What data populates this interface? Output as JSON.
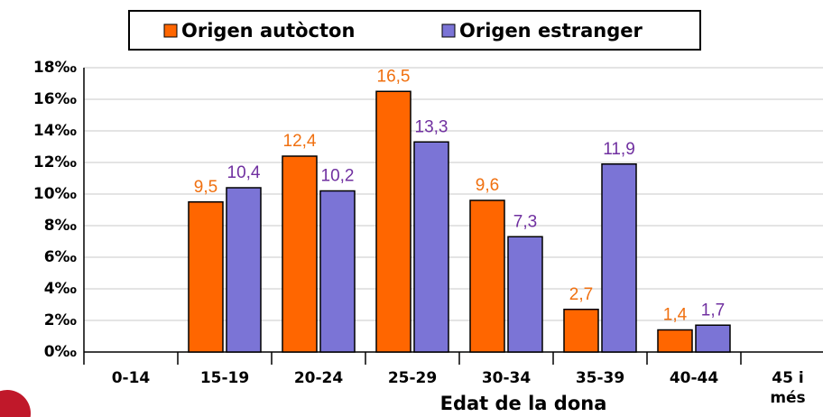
{
  "chart_data": {
    "type": "bar",
    "x_label": "Edat de la dona",
    "categories": [
      "0-14",
      "15-19",
      "20-24",
      "25-29",
      "30-34",
      "35-39",
      "40-44",
      "45 i més"
    ],
    "series": [
      {
        "name": "Origen autòcton",
        "color": "#ff6600",
        "label_color": "#f07010",
        "values": [
          null,
          9.5,
          12.4,
          16.5,
          9.6,
          2.7,
          1.4,
          null
        ],
        "value_labels": [
          null,
          "9,5",
          "12,4",
          "16,5",
          "9,6",
          "2,7",
          "1,4",
          null
        ]
      },
      {
        "name": "Origen estranger",
        "color": "#7b74d6",
        "label_color": "#7030a0",
        "values": [
          null,
          10.4,
          10.2,
          13.3,
          7.3,
          11.9,
          1.7,
          null
        ],
        "value_labels": [
          null,
          "10,4",
          "10,2",
          "13,3",
          "7,3",
          "11,9",
          "1,7",
          null
        ]
      }
    ],
    "ylim": [
      0,
      18
    ],
    "yticks": [
      {
        "value": 0,
        "label": "0‰"
      },
      {
        "value": 2,
        "label": "2‰"
      },
      {
        "value": 4,
        "label": "4‰"
      },
      {
        "value": 6,
        "label": "6‰"
      },
      {
        "value": 8,
        "label": "8‰"
      },
      {
        "value": 10,
        "label": "10‰"
      },
      {
        "value": 12,
        "label": "12‰"
      },
      {
        "value": 14,
        "label": "14‰"
      },
      {
        "value": 16,
        "label": "16‰"
      },
      {
        "value": 18,
        "label": "18‰"
      }
    ],
    "grid": true,
    "legend": "top"
  }
}
